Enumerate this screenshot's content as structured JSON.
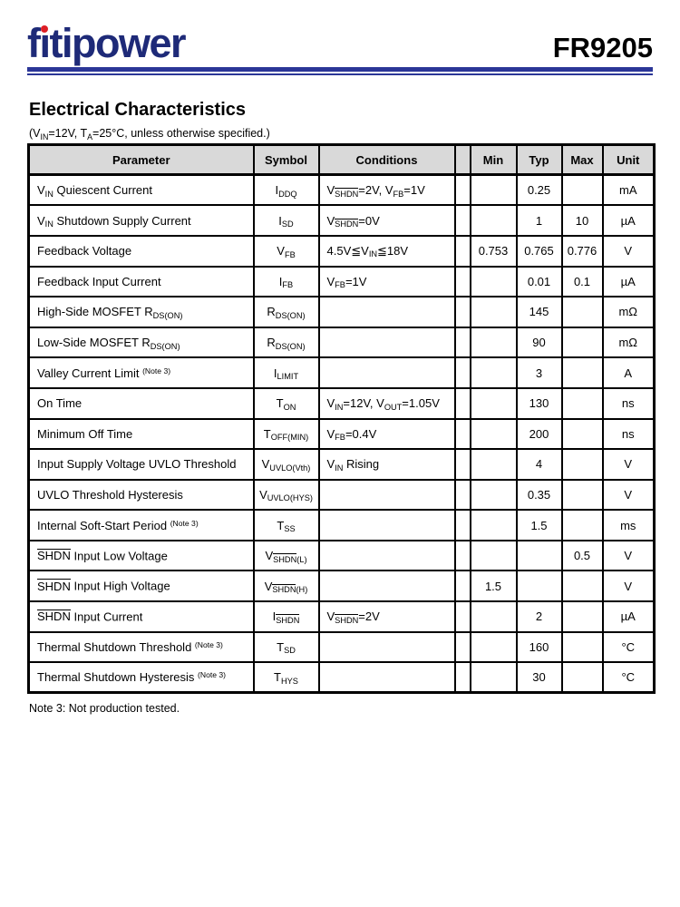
{
  "header": {
    "brand_name": "fitipower",
    "brand_part1": "f",
    "brand_part2": "ı",
    "brand_part3": "tipower",
    "part_number": "FR9205"
  },
  "colors": {
    "brand_navy": "#1e2a78",
    "logo_dot_red": "#dd1f26",
    "rule_navy": "#2b3697",
    "table_header_bg": "#d9d9d9"
  },
  "section": {
    "title": "Electrical Characteristics",
    "subtitle": "(V_{IN}=12V, T_{A}=25°C, unless otherwise specified.)"
  },
  "table": {
    "columns": [
      "Parameter",
      "Symbol",
      "Conditions",
      "Min",
      "Typ",
      "Max",
      "Unit"
    ],
    "rows": [
      {
        "param": "V_{IN} Quiescent Current",
        "symbol": "I_{DDQ}",
        "cond": "V_{~SHDN~}=2V, V_{FB}=1V",
        "min": "",
        "typ": "0.25",
        "max": "",
        "unit": "mA"
      },
      {
        "param": "V_{IN} Shutdown Supply Current",
        "symbol": "I_{SD}",
        "cond": "V_{~SHDN~}=0V",
        "min": "",
        "typ": "1",
        "max": "10",
        "unit": "µA"
      },
      {
        "param": "Feedback Voltage",
        "symbol": "V_{FB}",
        "cond": "4.5V≦V_{IN}≦18V",
        "min": "0.753",
        "typ": "0.765",
        "max": "0.776",
        "unit": "V"
      },
      {
        "param": "Feedback Input Current",
        "symbol": "I_{FB}",
        "cond": "V_{FB}=1V",
        "min": "",
        "typ": "0.01",
        "max": "0.1",
        "unit": "µA"
      },
      {
        "param": "High-Side MOSFET R_{DS(ON)}",
        "symbol": "R_{DS(ON)}",
        "cond": "",
        "min": "",
        "typ": "145",
        "max": "",
        "unit": "mΩ"
      },
      {
        "param": "Low-Side MOSFET R_{DS(ON)}",
        "symbol": "R_{DS(ON)}",
        "cond": "",
        "min": "",
        "typ": "90",
        "max": "",
        "unit": "mΩ"
      },
      {
        "param": "Valley Current Limit ^{(Note 3)}",
        "symbol": "I_{LIMIT}",
        "cond": "",
        "min": "",
        "typ": "3",
        "max": "",
        "unit": "A"
      },
      {
        "param": "On Time",
        "symbol": "T_{ON}",
        "cond": "V_{IN}=12V, V_{OUT}=1.05V",
        "min": "",
        "typ": "130",
        "max": "",
        "unit": "ns"
      },
      {
        "param": "Minimum Off Time",
        "symbol": "T_{OFF(MIN)}",
        "cond": "V_{FB}=0.4V",
        "min": "",
        "typ": "200",
        "max": "",
        "unit": "ns"
      },
      {
        "param": "Input Supply Voltage UVLO Threshold",
        "symbol": "V_{UVLO(Vth)}",
        "cond": "V_{IN} Rising",
        "min": "",
        "typ": "4",
        "max": "",
        "unit": "V"
      },
      {
        "param": "UVLO Threshold Hysteresis",
        "symbol": "V_{UVLO(HYS)}",
        "cond": "",
        "min": "",
        "typ": "0.35",
        "max": "",
        "unit": "V"
      },
      {
        "param": "Internal Soft-Start Period ^{(Note 3)}",
        "symbol": "T_{SS}",
        "cond": "",
        "min": "",
        "typ": "1.5",
        "max": "",
        "unit": "ms"
      },
      {
        "param": "~SHDN~ Input Low Voltage",
        "symbol": "V_{~SHDN~(L)}",
        "cond": "",
        "min": "",
        "typ": "",
        "max": "0.5",
        "unit": "V"
      },
      {
        "param": "~SHDN~ Input High Voltage",
        "symbol": "V_{~SHDN~(H)}",
        "cond": "",
        "min": "1.5",
        "typ": "",
        "max": "",
        "unit": "V"
      },
      {
        "param": "~SHDN~ Input Current",
        "symbol": "I_{~SHDN~}",
        "cond": "V_{~SHDN~}=2V",
        "min": "",
        "typ": "2",
        "max": "",
        "unit": "µA"
      },
      {
        "param": "Thermal Shutdown Threshold ^{(Note 3)}",
        "symbol": "T_{SD}",
        "cond": "",
        "min": "",
        "typ": "160",
        "max": "",
        "unit": "°C"
      },
      {
        "param": "Thermal Shutdown Hysteresis ^{(Note 3)}",
        "symbol": "T_{HYS}",
        "cond": "",
        "min": "",
        "typ": "30",
        "max": "",
        "unit": "°C"
      }
    ]
  },
  "note": "Note 3: Not production tested."
}
